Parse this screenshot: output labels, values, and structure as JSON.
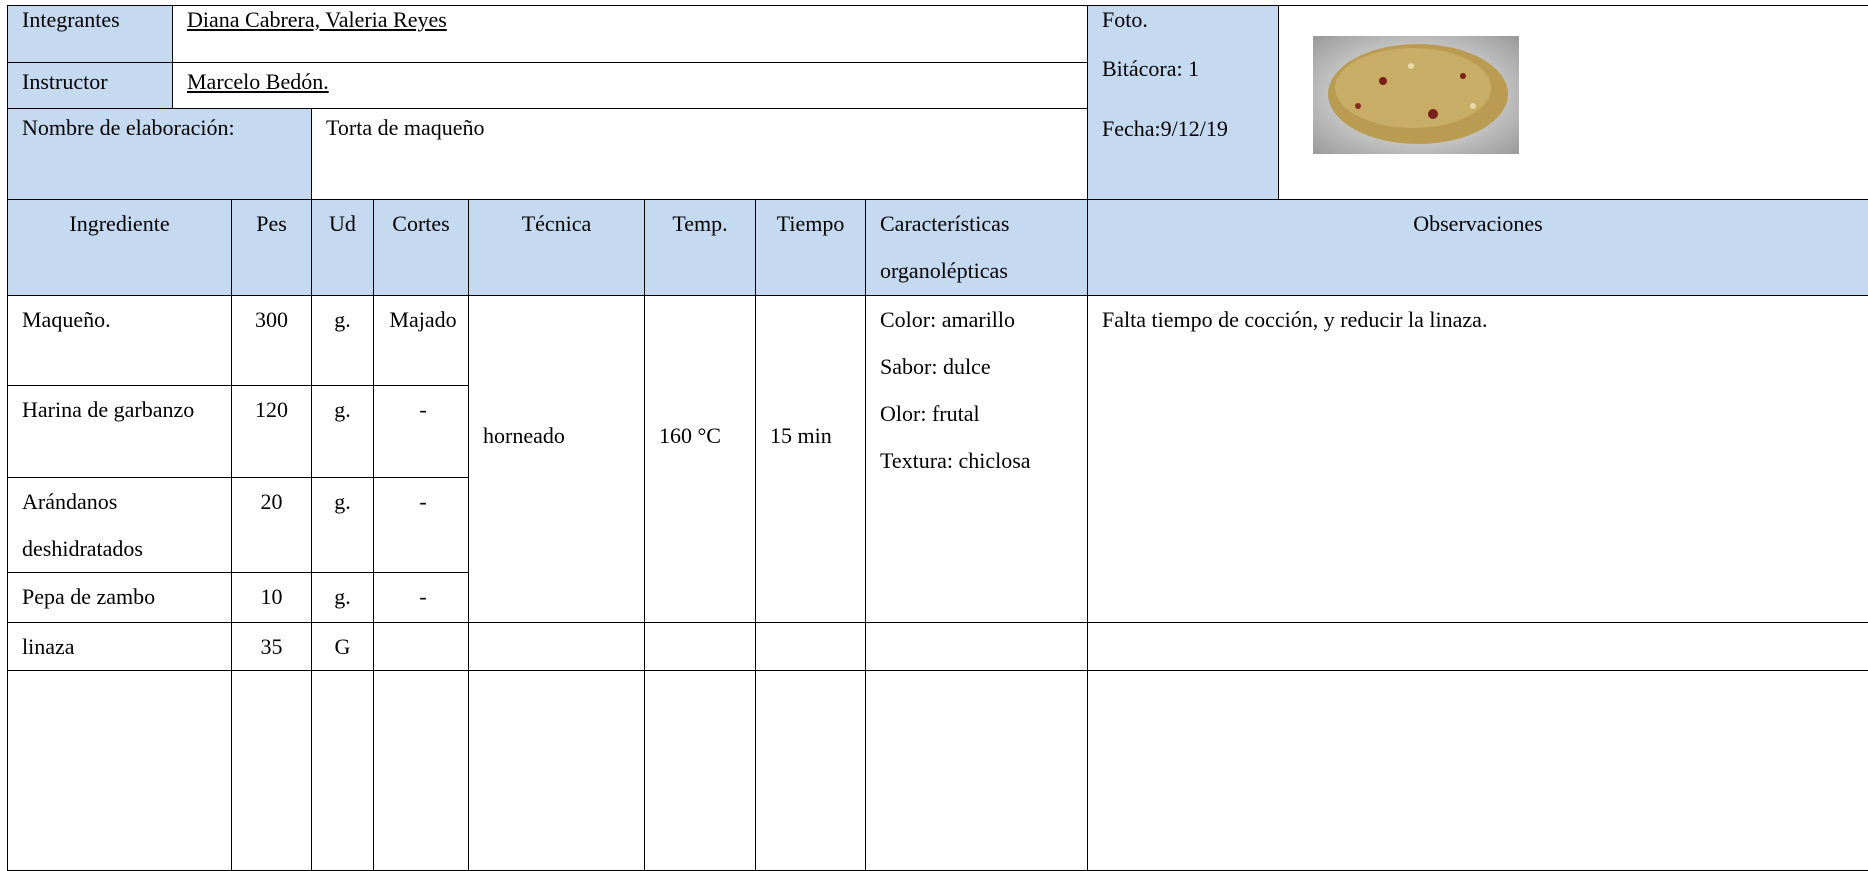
{
  "header": {
    "integrantes_label": "Integrantes",
    "integrantes": "Diana Cabrera, Valeria Reyes",
    "instructor_label": "Instructor",
    "instructor": "Marcelo Bedón.",
    "elaboracion_label": "Nombre de elaboración:",
    "elaboracion": "Torta de maqueño",
    "foto_label": "Foto.",
    "bitacora": "Bitácora: 1",
    "fecha": "Fecha:9/12/19"
  },
  "table": {
    "columns": [
      "Ingrediente",
      "Pes",
      "Ud",
      "Cortes",
      "Técnica",
      "Temp.",
      "Tiempo",
      "Características organolépticas",
      "Observaciones"
    ],
    "rows": [
      [
        "Maqueño.",
        300,
        "g.",
        "Majado"
      ],
      [
        "Harina de garbanzo",
        120,
        "g.",
        "-"
      ],
      [
        "Arándanos deshidratados",
        20,
        "g.",
        "-"
      ],
      [
        "Pepa de zambo",
        10,
        "g.",
        "-"
      ],
      [
        "linaza",
        35,
        "G"
      ]
    ],
    "tecnica": "horneado",
    "temp": "160 °C",
    "tiempo": "15 min",
    "caracteristicas": [
      "Color: amarillo",
      "Sabor: dulce",
      "Olor: frutal",
      "Textura: chiclosa"
    ],
    "observaciones": "Falta tiempo de cocción, y reducir la linaza."
  }
}
